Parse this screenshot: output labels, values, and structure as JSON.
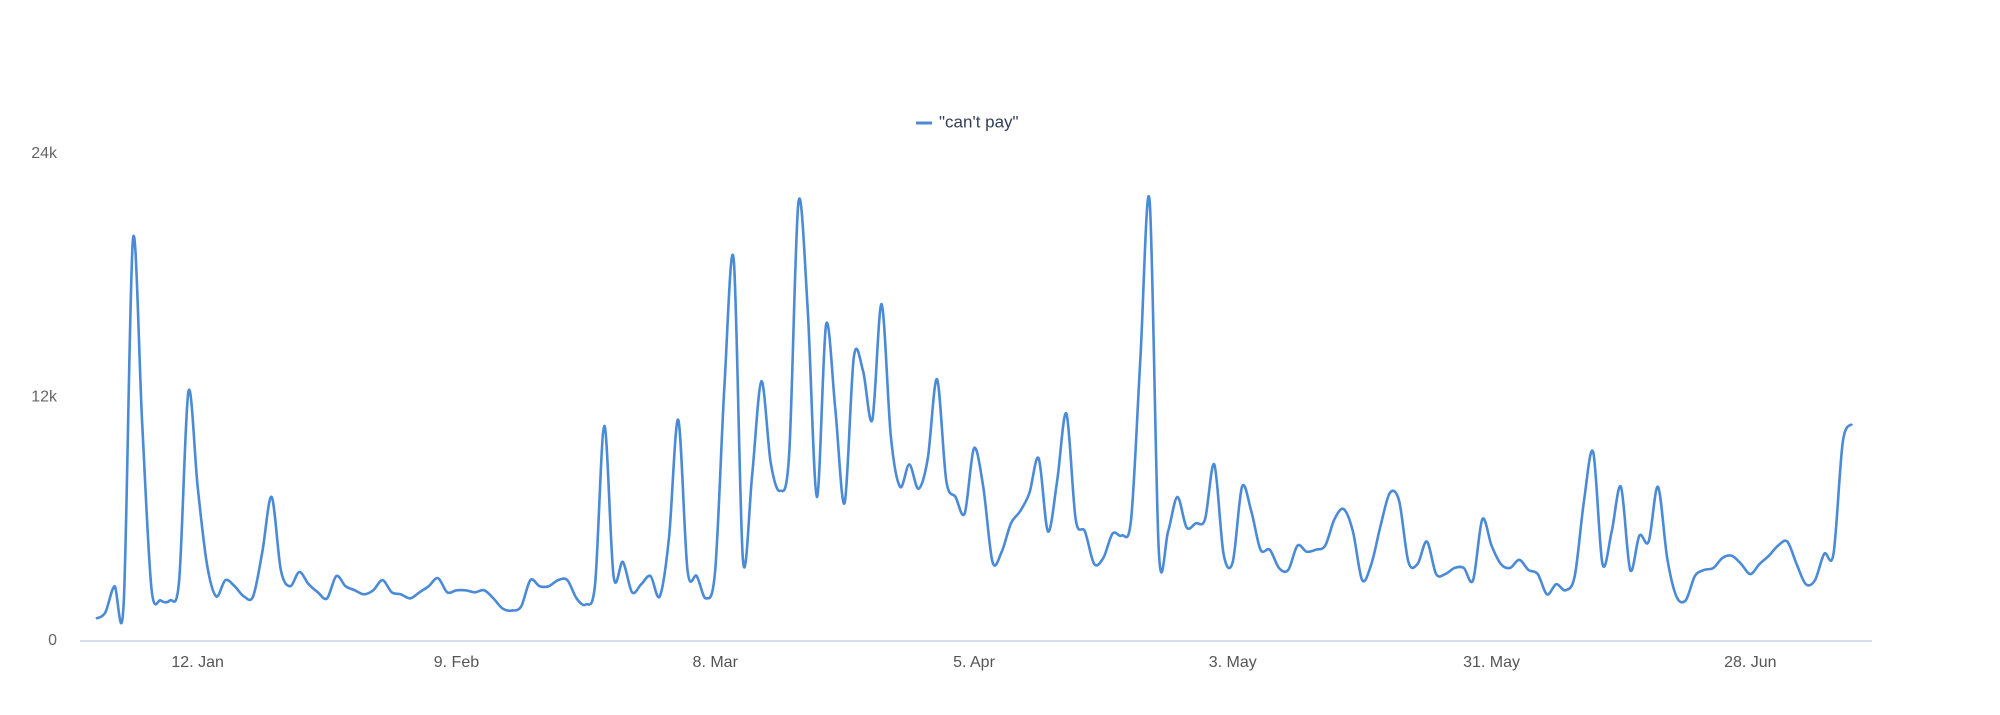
{
  "chart_data": {
    "type": "line",
    "categories": [
      null,
      null,
      null,
      null,
      null,
      null,
      null,
      null,
      null,
      null,
      null,
      "12. Jan",
      null,
      null,
      null,
      null,
      null,
      null,
      null,
      null,
      null,
      null,
      null,
      null,
      null,
      null,
      null,
      null,
      null,
      null,
      null,
      null,
      null,
      null,
      null,
      null,
      null,
      null,
      null,
      "9. Feb",
      null,
      null,
      null,
      null,
      null,
      null,
      null,
      null,
      null,
      null,
      null,
      null,
      null,
      null,
      null,
      null,
      null,
      null,
      null,
      null,
      null,
      null,
      null,
      null,
      null,
      null,
      null,
      "8. Mar",
      null,
      null,
      null,
      null,
      null,
      null,
      null,
      null,
      null,
      null,
      null,
      null,
      null,
      null,
      null,
      null,
      null,
      null,
      null,
      null,
      null,
      null,
      null,
      null,
      null,
      null,
      null,
      "5. Apr",
      null,
      null,
      null,
      null,
      null,
      null,
      null,
      null,
      null,
      null,
      null,
      null,
      null,
      null,
      null,
      null,
      null,
      null,
      null,
      null,
      null,
      null,
      null,
      null,
      null,
      null,
      null,
      "3. May",
      null,
      null,
      null,
      null,
      null,
      null,
      null,
      null,
      null,
      null,
      null,
      null,
      null,
      null,
      null,
      null,
      null,
      null,
      null,
      null,
      null,
      null,
      null,
      null,
      null,
      null,
      null,
      "31. May",
      null,
      null,
      null,
      null,
      null,
      null,
      null,
      null,
      null,
      null,
      null,
      null,
      null,
      null,
      null,
      null,
      null,
      null,
      null,
      null,
      null,
      null,
      null,
      null,
      null,
      null,
      null,
      "28. Jun",
      null,
      null,
      null,
      null,
      null,
      null,
      null,
      null,
      null,
      null,
      null
    ],
    "series": [
      {
        "name": "\"can't pay\"",
        "color": "#4a8ad6",
        "values": [
          1100,
          1400,
          2700,
          1900,
          19800,
          10700,
          2600,
          2000,
          2000,
          3000,
          12300,
          7600,
          3800,
          2200,
          3000,
          2700,
          2200,
          2200,
          4400,
          7100,
          3500,
          2700,
          3400,
          2800,
          2400,
          2100,
          3200,
          2700,
          2500,
          2300,
          2500,
          3000,
          2400,
          2300,
          2100,
          2400,
          2700,
          3100,
          2400,
          2500,
          2500,
          2400,
          2500,
          2100,
          1600,
          1500,
          1700,
          3000,
          2700,
          2700,
          3000,
          3000,
          2100,
          1800,
          2800,
          10600,
          3200,
          3900,
          2400,
          2800,
          3200,
          2200,
          5100,
          10900,
          3500,
          3200,
          2100,
          3500,
          12600,
          18800,
          4000,
          8200,
          12800,
          8800,
          7400,
          9200,
          21600,
          16400,
          7100,
          15600,
          11400,
          6800,
          14000,
          13300,
          10900,
          16600,
          10100,
          7600,
          8700,
          7500,
          9000,
          12900,
          7900,
          7100,
          6300,
          9500,
          7600,
          3900,
          4400,
          5800,
          6400,
          7300,
          9000,
          5400,
          7900,
          11200,
          6000,
          5400,
          3800,
          4100,
          5300,
          5200,
          6000,
          13900,
          21700,
          4400,
          5400,
          7100,
          5600,
          5800,
          6000,
          8700,
          4300,
          3900,
          7600,
          6400,
          4500,
          4500,
          3600,
          3500,
          4700,
          4400,
          4500,
          4700,
          6000,
          6500,
          5400,
          3000,
          3800,
          5700,
          7300,
          6900,
          3900,
          3800,
          4900,
          3300,
          3300,
          3600,
          3600,
          3000,
          6000,
          4700,
          3800,
          3600,
          4000,
          3500,
          3300,
          2300,
          2800,
          2500,
          3200,
          6900,
          9300,
          3800,
          5400,
          7600,
          3500,
          5200,
          4900,
          7600,
          4100,
          2200,
          2000,
          3200,
          3500,
          3600,
          4100,
          4200,
          3800,
          3300,
          3800,
          4200,
          4700,
          4900,
          3800,
          2800,
          3000,
          4300,
          4300,
          9800,
          10700
        ]
      }
    ],
    "ylim": [
      0,
      24000
    ],
    "yticks": [
      0,
      {
        "value": 12000,
        "label": "12k"
      },
      {
        "value": 24000,
        "label": "24k"
      }
    ],
    "grid": false
  }
}
